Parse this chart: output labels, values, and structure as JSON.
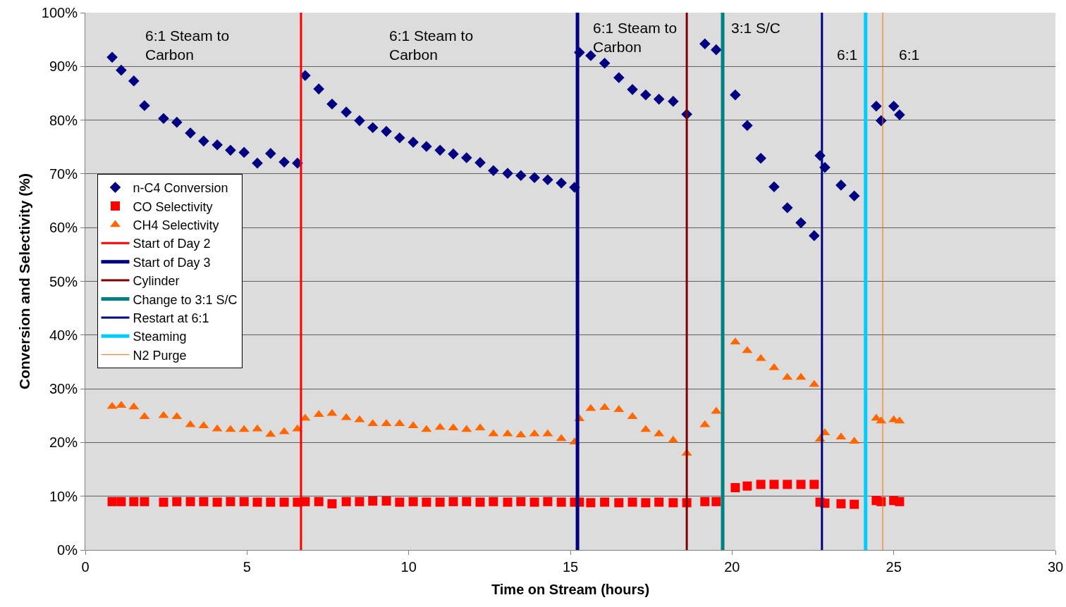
{
  "chart_data": {
    "type": "scatter",
    "xlabel": "Time on Stream (hours)",
    "ylabel": "Conversion and Selectivity (%)",
    "xlim": [
      0,
      30
    ],
    "xticks": [
      0,
      5,
      10,
      15,
      20,
      25,
      30
    ],
    "ylim": [
      0,
      100
    ],
    "yticks": [
      {
        "value": 0,
        "label": "0%"
      },
      {
        "value": 10,
        "label": "10%"
      },
      {
        "value": 20,
        "label": "20%"
      },
      {
        "value": 30,
        "label": "30%"
      },
      {
        "value": 40,
        "label": "40%"
      },
      {
        "value": 50,
        "label": "50%"
      },
      {
        "value": 60,
        "label": "60%"
      },
      {
        "value": 70,
        "label": "70%"
      },
      {
        "value": 80,
        "label": "80%"
      },
      {
        "value": 90,
        "label": "90%"
      },
      {
        "value": 100,
        "label": "100%"
      }
    ],
    "grid": "y",
    "legend": "left",
    "x": [
      0.83,
      1.11,
      1.5,
      1.83,
      2.42,
      2.83,
      3.25,
      3.66,
      4.08,
      4.49,
      4.91,
      5.32,
      5.73,
      6.15,
      6.56,
      6.8,
      7.22,
      7.63,
      8.07,
      8.48,
      8.89,
      9.31,
      9.72,
      10.14,
      10.55,
      10.97,
      11.38,
      11.79,
      12.21,
      12.62,
      13.06,
      13.47,
      13.89,
      14.3,
      14.72,
      15.13,
      15.28,
      15.63,
      16.06,
      16.5,
      16.92,
      17.33,
      17.74,
      18.18,
      18.6,
      19.16,
      19.51,
      20.1,
      20.47,
      20.89,
      21.3,
      21.71,
      22.13,
      22.54,
      22.72,
      22.87,
      23.37,
      23.78,
      24.46,
      24.61,
      25.0,
      25.18
    ],
    "series": [
      {
        "name": "n-C4 Conversion",
        "marker": "diamond",
        "color": "#000080",
        "values": [
          91.7,
          89.3,
          87.3,
          82.7,
          80.3,
          79.6,
          77.6,
          76.1,
          75.4,
          74.4,
          74.0,
          72.0,
          73.8,
          72.2,
          72.0,
          88.3,
          85.8,
          83.0,
          81.5,
          79.9,
          78.6,
          77.9,
          76.7,
          75.9,
          75.1,
          74.4,
          73.7,
          73.0,
          72.1,
          70.6,
          70.1,
          69.7,
          69.3,
          68.9,
          68.3,
          67.5,
          92.6,
          92.0,
          90.6,
          87.9,
          85.7,
          84.7,
          83.9,
          83.5,
          81.1,
          94.2,
          93.1,
          84.7,
          79.0,
          72.9,
          67.6,
          63.7,
          60.9,
          58.5,
          73.4,
          71.2,
          67.9,
          65.9,
          82.6,
          79.9,
          82.6,
          81.0
        ]
      },
      {
        "name": "CO Selectivity",
        "marker": "square",
        "color": "#ff0000",
        "values": [
          9.0,
          9.0,
          9.0,
          9.0,
          8.9,
          9.0,
          9.0,
          9.0,
          8.9,
          9.0,
          9.0,
          8.9,
          8.9,
          8.9,
          8.9,
          9.0,
          9.0,
          8.6,
          9.0,
          9.0,
          9.1,
          9.1,
          8.9,
          9.0,
          8.9,
          8.9,
          9.0,
          9.0,
          8.9,
          9.0,
          8.9,
          9.0,
          8.9,
          9.0,
          8.9,
          8.9,
          8.9,
          8.8,
          8.9,
          8.8,
          8.9,
          8.8,
          8.9,
          8.8,
          8.8,
          9.0,
          9.0,
          11.6,
          11.9,
          12.2,
          12.2,
          12.2,
          12.2,
          12.2,
          8.9,
          8.7,
          8.6,
          8.5,
          9.2,
          9.0,
          9.2,
          9.0
        ]
      },
      {
        "name": "CH4 Selectivity",
        "marker": "triangle",
        "color": "#ff6600",
        "values": [
          26.7,
          26.9,
          26.6,
          24.8,
          25.0,
          24.8,
          23.3,
          23.1,
          22.5,
          22.4,
          22.4,
          22.5,
          21.5,
          22.0,
          22.5,
          24.5,
          25.2,
          25.4,
          24.6,
          24.2,
          23.5,
          23.5,
          23.5,
          23.1,
          22.4,
          22.8,
          22.7,
          22.4,
          22.7,
          21.6,
          21.6,
          21.4,
          21.6,
          21.6,
          20.7,
          20.1,
          24.4,
          26.3,
          26.5,
          26.1,
          24.8,
          22.4,
          21.6,
          20.4,
          18.0,
          23.3,
          25.8,
          38.7,
          37.1,
          35.6,
          33.9,
          32.1,
          32.1,
          30.8,
          20.6,
          21.8,
          21.0,
          20.2,
          24.5,
          24.0,
          24.2,
          24.0
        ]
      },
      {
        "name": "Start of Day 2",
        "type": "line",
        "marker": "none",
        "color": "#ff0000",
        "x": [
          6.67,
          6.67
        ],
        "values": [
          0,
          100
        ]
      },
      {
        "name": "Start of Day 3",
        "type": "line",
        "marker": "none",
        "color": "#000080",
        "x": [
          15.22,
          15.22
        ],
        "values": [
          0,
          100
        ]
      },
      {
        "name": "Cylinder",
        "type": "line",
        "marker": "none",
        "color": "#800000",
        "x": [
          18.6,
          18.6
        ],
        "values": [
          0,
          100
        ]
      },
      {
        "name": "Change to 3:1 S/C",
        "type": "line",
        "marker": "none",
        "color": "#008080",
        "x": [
          19.71,
          19.71
        ],
        "values": [
          0,
          100
        ]
      },
      {
        "name": "Restart at 6:1",
        "type": "line",
        "marker": "none",
        "color": "#000080",
        "x": [
          22.78,
          22.78
        ],
        "values": [
          0,
          100
        ]
      },
      {
        "name": "Steaming",
        "type": "line",
        "marker": "none",
        "color": "#00ccff",
        "x": [
          24.13,
          24.13
        ],
        "values": [
          0,
          100
        ]
      },
      {
        "name": "N2 Purge",
        "type": "line",
        "marker": "none",
        "color": "#ff6600",
        "x": [
          24.66,
          24.66
        ],
        "values": [
          0,
          100
        ]
      }
    ],
    "annotations": [
      "6:1 Steam to\nCarbon",
      "6:1 Steam to\nCarbon",
      "6:1 Steam to\nCarbon",
      "3:1 S/C",
      "6:1",
      "6:1"
    ]
  }
}
